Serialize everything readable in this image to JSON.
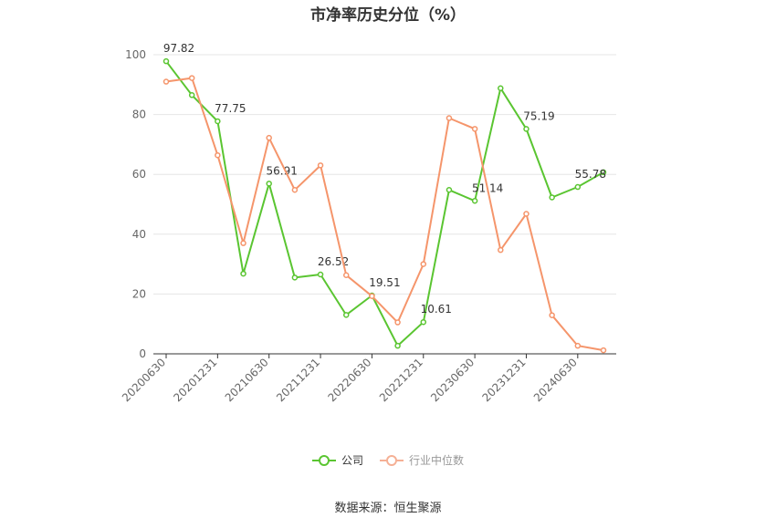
{
  "chart_data": {
    "type": "line",
    "title": "市净率历史分位（%）",
    "xlabel": "",
    "ylabel": "",
    "ylim": [
      0,
      100
    ],
    "yticks": [
      0,
      20,
      40,
      60,
      80,
      100
    ],
    "x": [
      "20200630",
      "20200930",
      "20201231",
      "20210331",
      "20210630",
      "20210930",
      "20211231",
      "20220331",
      "20220630",
      "20220930",
      "20221231",
      "20230331",
      "20230630",
      "20230930",
      "20231231",
      "20240331",
      "20240630",
      "20240930"
    ],
    "xtick_labels": [
      "20200630",
      "20201231",
      "20210630",
      "20211231",
      "20220630",
      "20221231",
      "20230630",
      "20231231",
      "20240630"
    ],
    "grid": true,
    "legend_position": "bottom",
    "series": [
      {
        "name": "公司",
        "color": "#5ac531",
        "values": [
          97.82,
          86.5,
          77.75,
          26.8,
          56.91,
          25.5,
          26.52,
          13.0,
          19.51,
          2.7,
          10.61,
          54.8,
          51.14,
          88.8,
          75.19,
          52.3,
          55.78,
          60.7
        ],
        "labels": [
          {
            "index": 0,
            "text": "97.82"
          },
          {
            "index": 2,
            "text": "77.75"
          },
          {
            "index": 4,
            "text": "56.91"
          },
          {
            "index": 6,
            "text": "26.52"
          },
          {
            "index": 8,
            "text": "19.51"
          },
          {
            "index": 10,
            "text": "10.61"
          },
          {
            "index": 12,
            "text": "51.14"
          },
          {
            "index": 14,
            "text": "75.19"
          },
          {
            "index": 16,
            "text": "55.78"
          }
        ]
      },
      {
        "name": "行业中位数",
        "color": "#f5956b",
        "values": [
          91.0,
          92.2,
          66.4,
          37.0,
          72.2,
          54.8,
          63.0,
          26.3,
          19.3,
          10.5,
          30.0,
          78.8,
          75.2,
          34.7,
          46.8,
          12.9,
          2.7,
          1.2
        ]
      }
    ],
    "source": "数据来源：恒生聚源"
  }
}
